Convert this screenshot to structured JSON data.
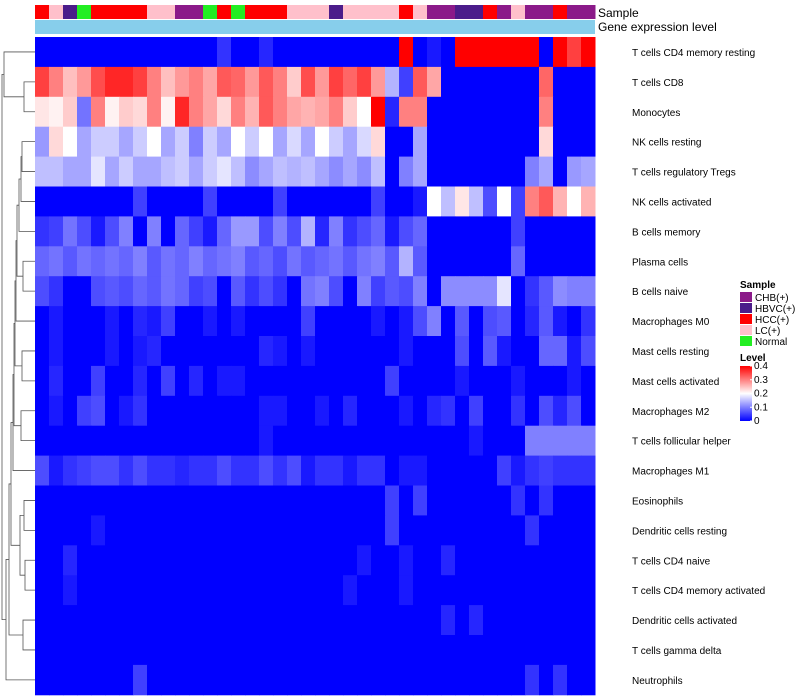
{
  "chart_data": {
    "type": "heatmap",
    "title": "",
    "annotation_rows": [
      "Sample",
      "Gene expression level"
    ],
    "sample_groups": [
      "HCC(+)",
      "LC(+)",
      "HBVC(+)",
      "Normal",
      "HCC(+)",
      "HCC(+)",
      "HCC(+)",
      "HCC(+)",
      "LC(+)",
      "LC(+)",
      "CHB(+)",
      "CHB(+)",
      "Normal",
      "HCC(+)",
      "Normal",
      "HCC(+)",
      "HCC(+)",
      "HCC(+)",
      "LC(+)",
      "LC(+)",
      "LC(+)",
      "HBVC(+)",
      "LC(+)",
      "LC(+)",
      "LC(+)",
      "LC(+)",
      "HCC(+)",
      "LC(+)",
      "CHB(+)",
      "CHB(+)",
      "HBVC(+)",
      "HBVC(+)",
      "HCC(+)",
      "CHB(+)",
      "LC(+)",
      "CHB(+)",
      "CHB(+)",
      "HCC(+)",
      "CHB(+)",
      "CHB(+)"
    ],
    "rows": [
      "T cells CD4 memory resting",
      "T cells CD8",
      "Monocytes",
      "NK cells resting",
      "T cells regulatory  Tregs",
      "NK cells activated",
      "B cells memory",
      "Plasma cells",
      "B cells naive",
      "Macrophages M0",
      "Mast cells resting",
      "Mast cells activated",
      "Macrophages M2",
      "T cells follicular helper",
      "Macrophages M1",
      "Eosinophils",
      "Dendritic cells resting",
      "T cells CD4 naive",
      "T cells CD4 memory activated",
      "Dendritic cells activated",
      "T cells gamma delta",
      "Neutrophils"
    ],
    "values": [
      [
        0,
        0,
        0,
        0,
        0,
        0,
        0,
        0,
        0,
        0,
        0,
        0,
        0,
        0.04,
        0,
        0,
        0.03,
        0,
        0,
        0,
        0,
        0,
        0,
        0,
        0,
        0,
        0.4,
        0,
        0.02,
        0,
        0.4,
        0.4,
        0.4,
        0.4,
        0.4,
        0.4,
        0,
        0.4,
        0.35,
        0.4
      ],
      [
        0.35,
        0.3,
        0.25,
        0.28,
        0.34,
        0.37,
        0.37,
        0.35,
        0.3,
        0.25,
        0.28,
        0.3,
        0.27,
        0.33,
        0.32,
        0.28,
        0.33,
        0.3,
        0.24,
        0.34,
        0.28,
        0.35,
        0.32,
        0.35,
        0.28,
        0.14,
        0.05,
        0.33,
        0.27,
        0,
        0,
        0,
        0,
        0,
        0,
        0,
        0.32,
        0,
        0,
        0
      ],
      [
        0.22,
        0.21,
        0.24,
        0.09,
        0.3,
        0.21,
        0.24,
        0.23,
        0.3,
        0.21,
        0.37,
        0.3,
        0.27,
        0.23,
        0.3,
        0.26,
        0.33,
        0.3,
        0.27,
        0.26,
        0.27,
        0.3,
        0.24,
        0.2,
        0.4,
        0.03,
        0.3,
        0.3,
        0,
        0,
        0,
        0,
        0,
        0,
        0,
        0,
        0.3,
        0,
        0,
        0
      ],
      [
        0.12,
        0.23,
        0.2,
        0.13,
        0.16,
        0.16,
        0.13,
        0.16,
        0.2,
        0.13,
        0.16,
        0.1,
        0.16,
        0.13,
        0.2,
        0.16,
        0.2,
        0.13,
        0.17,
        0.13,
        0.2,
        0.16,
        0.13,
        0.17,
        0.23,
        0,
        0,
        0.13,
        0,
        0,
        0,
        0,
        0,
        0,
        0,
        0,
        0.23,
        0,
        0,
        0
      ],
      [
        0.15,
        0.15,
        0.13,
        0.13,
        0.18,
        0.13,
        0.16,
        0.13,
        0.13,
        0.15,
        0.16,
        0.13,
        0.16,
        0.18,
        0.15,
        0.11,
        0.13,
        0.15,
        0.14,
        0.15,
        0.13,
        0.11,
        0.13,
        0.11,
        0.15,
        0,
        0.1,
        0.13,
        0,
        0,
        0,
        0,
        0,
        0,
        0,
        0.1,
        0.13,
        0,
        0.12,
        0.13
      ],
      [
        0,
        0,
        0,
        0,
        0,
        0,
        0,
        0.05,
        0,
        0,
        0,
        0,
        0.05,
        0,
        0,
        0,
        0,
        0.05,
        0,
        0,
        0,
        0,
        0,
        0,
        0.05,
        0,
        0,
        0.02,
        0.2,
        0.15,
        0.22,
        0.15,
        0.06,
        0.2,
        0.05,
        0.3,
        0.33,
        0.26,
        0.2,
        0.26
      ],
      [
        0.04,
        0.05,
        0.09,
        0.06,
        0.02,
        0.06,
        0.1,
        0,
        0.1,
        0,
        0.08,
        0.05,
        0.02,
        0.08,
        0.12,
        0.12,
        0.06,
        0.1,
        0.06,
        0.14,
        0.03,
        0.1,
        0.04,
        0.06,
        0.08,
        0.02,
        0.06,
        0.08,
        0,
        0,
        0,
        0,
        0,
        0,
        0.05,
        0,
        0,
        0,
        0,
        0
      ],
      [
        0.08,
        0.09,
        0.07,
        0.09,
        0.08,
        0.09,
        0.08,
        0.1,
        0.07,
        0.09,
        0.08,
        0.1,
        0.08,
        0.09,
        0.1,
        0.07,
        0.08,
        0.06,
        0.09,
        0.07,
        0.08,
        0.09,
        0.07,
        0.09,
        0.1,
        0.07,
        0.14,
        0.07,
        0,
        0,
        0,
        0,
        0,
        0,
        0.08,
        0,
        0,
        0,
        0,
        0
      ],
      [
        0.06,
        0.04,
        0,
        0,
        0.06,
        0.07,
        0.06,
        0.08,
        0.07,
        0.09,
        0.08,
        0.05,
        0.06,
        0,
        0.07,
        0.04,
        0.06,
        0.04,
        0,
        0.09,
        0.1,
        0.06,
        0,
        0.1,
        0.05,
        0.07,
        0.06,
        0.1,
        0,
        0.11,
        0.11,
        0.11,
        0.11,
        0.18,
        0,
        0.04,
        0.07,
        0.11,
        0.1,
        0.1
      ],
      [
        0,
        0.02,
        0,
        0,
        0,
        0.02,
        0,
        0.03,
        0.02,
        0.05,
        0,
        0,
        0.02,
        0,
        0.02,
        0,
        0,
        0,
        0,
        0.05,
        0,
        0,
        0,
        0,
        0.02,
        0,
        0.02,
        0.06,
        0.1,
        0,
        0.07,
        0,
        0.06,
        0.07,
        0,
        0.03,
        0.07,
        0.02,
        0,
        0.04
      ],
      [
        0,
        0.02,
        0,
        0,
        0,
        0.02,
        0,
        0.02,
        0.03,
        0,
        0,
        0,
        0,
        0,
        0,
        0,
        0.03,
        0.02,
        0,
        0.02,
        0,
        0,
        0,
        0,
        0,
        0,
        0.02,
        0,
        0,
        0,
        0.06,
        0,
        0.07,
        0.02,
        0,
        0,
        0.08,
        0.08,
        0.02,
        0.06
      ],
      [
        0,
        0.03,
        0,
        0,
        0.05,
        0,
        0,
        0.03,
        0,
        0.05,
        0,
        0.03,
        0,
        0.02,
        0.02,
        0,
        0,
        0,
        0,
        0,
        0,
        0,
        0,
        0,
        0,
        0.05,
        0,
        0,
        0,
        0,
        0.02,
        0,
        0,
        0,
        0.02,
        0,
        0,
        0,
        0.02,
        0
      ],
      [
        0,
        0.02,
        0,
        0.05,
        0.06,
        0,
        0.02,
        0.04,
        0,
        0,
        0,
        0,
        0,
        0,
        0,
        0,
        0.02,
        0.02,
        0,
        0,
        0.02,
        0,
        0.03,
        0,
        0,
        0,
        0.02,
        0,
        0.03,
        0.04,
        0,
        0.05,
        0,
        0,
        0.04,
        0,
        0.06,
        0.03,
        0.06,
        0
      ],
      [
        0,
        0,
        0,
        0,
        0,
        0,
        0,
        0,
        0,
        0,
        0,
        0,
        0,
        0,
        0,
        0,
        0.02,
        0,
        0,
        0,
        0,
        0,
        0,
        0,
        0,
        0,
        0,
        0,
        0,
        0,
        0,
        0.02,
        0,
        0,
        0,
        0.1,
        0.1,
        0.1,
        0.1,
        0.1
      ],
      [
        0.06,
        0.02,
        0.04,
        0.05,
        0.06,
        0.06,
        0.04,
        0.06,
        0.04,
        0.04,
        0.03,
        0.04,
        0.04,
        0.06,
        0.04,
        0.04,
        0.06,
        0.04,
        0.06,
        0.02,
        0.04,
        0.04,
        0.02,
        0.04,
        0.04,
        0,
        0.02,
        0.02,
        0,
        0,
        0,
        0,
        0,
        0.05,
        0.02,
        0.04,
        0.05,
        0.04,
        0.04,
        0.04
      ],
      [
        0,
        0,
        0,
        0,
        0,
        0,
        0,
        0,
        0,
        0,
        0,
        0,
        0,
        0,
        0,
        0,
        0,
        0,
        0,
        0,
        0,
        0,
        0,
        0,
        0,
        0.05,
        0,
        0.05,
        0,
        0,
        0,
        0,
        0,
        0,
        0.04,
        0,
        0.04,
        0,
        0,
        0
      ],
      [
        0,
        0,
        0,
        0,
        0.02,
        0,
        0,
        0,
        0,
        0,
        0,
        0,
        0,
        0,
        0,
        0,
        0,
        0,
        0,
        0,
        0,
        0,
        0,
        0,
        0,
        0.05,
        0,
        0,
        0,
        0,
        0,
        0,
        0,
        0,
        0,
        0.04,
        0,
        0,
        0,
        0
      ],
      [
        0,
        0,
        0.03,
        0,
        0,
        0,
        0,
        0,
        0,
        0,
        0,
        0,
        0,
        0,
        0,
        0,
        0,
        0,
        0,
        0,
        0,
        0,
        0,
        0.02,
        0,
        0,
        0.02,
        0,
        0,
        0.03,
        0,
        0,
        0,
        0,
        0,
        0,
        0,
        0,
        0,
        0
      ],
      [
        0,
        0,
        0.02,
        0,
        0,
        0,
        0,
        0,
        0,
        0,
        0,
        0,
        0,
        0,
        0,
        0,
        0,
        0,
        0,
        0,
        0,
        0,
        0.02,
        0,
        0,
        0,
        0.02,
        0,
        0,
        0,
        0,
        0,
        0,
        0,
        0,
        0,
        0,
        0,
        0,
        0
      ],
      [
        0,
        0,
        0,
        0,
        0,
        0,
        0,
        0,
        0,
        0,
        0,
        0,
        0,
        0,
        0,
        0,
        0,
        0,
        0,
        0,
        0,
        0,
        0,
        0,
        0,
        0,
        0,
        0,
        0,
        0.03,
        0,
        0.03,
        0,
        0,
        0,
        0,
        0,
        0,
        0,
        0
      ],
      [
        0,
        0,
        0,
        0,
        0,
        0,
        0,
        0,
        0,
        0,
        0,
        0,
        0,
        0,
        0,
        0,
        0,
        0,
        0,
        0,
        0,
        0,
        0,
        0,
        0,
        0,
        0,
        0,
        0,
        0,
        0,
        0,
        0,
        0,
        0,
        0,
        0,
        0,
        0,
        0
      ],
      [
        0,
        0,
        0,
        0,
        0,
        0,
        0,
        0.05,
        0,
        0,
        0,
        0,
        0,
        0,
        0,
        0,
        0,
        0,
        0,
        0,
        0,
        0,
        0,
        0,
        0,
        0,
        0,
        0,
        0,
        0,
        0,
        0,
        0,
        0,
        0,
        0.04,
        0,
        0.04,
        0,
        0
      ]
    ],
    "legend": {
      "sample_title": "Sample",
      "sample_entries": [
        {
          "label": "CHB(+)",
          "color": "#8B1A89"
        },
        {
          "label": "HBVC(+)",
          "color": "#4B1C8A"
        },
        {
          "label": "HCC(+)",
          "color": "#FF0000"
        },
        {
          "label": "LC(+)",
          "color": "#FFC0CB"
        },
        {
          "label": "Normal",
          "color": "#22EE22"
        }
      ],
      "level_title": "Level",
      "level_ticks": [
        "0.4",
        "0.3",
        "0.2",
        "0.1",
        "0"
      ],
      "level_tick_values": [
        0.4,
        0.3,
        0.2,
        0.1,
        0
      ],
      "range": [
        0,
        0.4
      ]
    },
    "colors": {
      "low": "#0000FF",
      "mid": "#FFFFFF",
      "high": "#FF0000",
      "annotation_bar": "#87CEEB"
    }
  }
}
